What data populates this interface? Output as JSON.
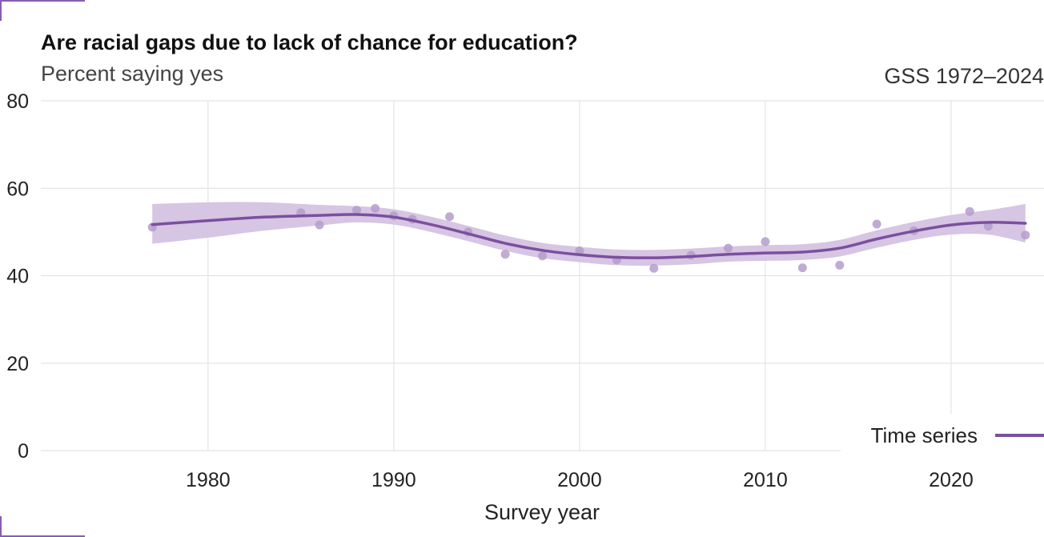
{
  "chart_data": {
    "type": "line",
    "title": "Are racial gaps due to lack of chance for education?",
    "subtitle": "Percent saying yes",
    "source_note": "GSS 1972–2024",
    "xlabel": "Survey year",
    "ylabel": "",
    "xlim": [
      1971,
      2025
    ],
    "ylim": [
      0,
      80
    ],
    "x_ticks": [
      1980,
      1990,
      2000,
      2010,
      2020
    ],
    "y_ticks": [
      0,
      20,
      40,
      60,
      80
    ],
    "grid": true,
    "legend": {
      "position": "bottom-right",
      "entries": [
        "Time series"
      ]
    },
    "colors": {
      "series": "#7b4f9e",
      "band": "#d4c2e2",
      "points": "#b49ccb",
      "grid": "#e4e4e4",
      "corner": "#8a5cb0"
    },
    "series": [
      {
        "name": "Time series",
        "points": [
          {
            "x": 1977,
            "y": 51.1
          },
          {
            "x": 1985,
            "y": 54.4
          },
          {
            "x": 1986,
            "y": 51.6
          },
          {
            "x": 1988,
            "y": 55.0
          },
          {
            "x": 1989,
            "y": 55.4
          },
          {
            "x": 1990,
            "y": 53.7
          },
          {
            "x": 1991,
            "y": 52.9
          },
          {
            "x": 1993,
            "y": 53.5
          },
          {
            "x": 1994,
            "y": 50.0
          },
          {
            "x": 1996,
            "y": 44.9
          },
          {
            "x": 1998,
            "y": 44.5
          },
          {
            "x": 2000,
            "y": 45.7
          },
          {
            "x": 2002,
            "y": 43.6
          },
          {
            "x": 2004,
            "y": 41.7
          },
          {
            "x": 2006,
            "y": 44.7
          },
          {
            "x": 2008,
            "y": 46.3
          },
          {
            "x": 2010,
            "y": 47.8
          },
          {
            "x": 2012,
            "y": 41.8
          },
          {
            "x": 2014,
            "y": 42.4
          },
          {
            "x": 2016,
            "y": 51.8
          },
          {
            "x": 2018,
            "y": 50.3
          },
          {
            "x": 2021,
            "y": 54.7
          },
          {
            "x": 2022,
            "y": 51.3
          },
          {
            "x": 2024,
            "y": 49.3
          }
        ],
        "trend": [
          {
            "x": 1977,
            "y": 51.7,
            "lo": 47.3,
            "hi": 56.4
          },
          {
            "x": 1980,
            "y": 52.6,
            "lo": 48.7,
            "hi": 56.8
          },
          {
            "x": 1983,
            "y": 53.4,
            "lo": 50.3,
            "hi": 56.8
          },
          {
            "x": 1986,
            "y": 53.8,
            "lo": 51.5,
            "hi": 56.2
          },
          {
            "x": 1988,
            "y": 54.0,
            "lo": 52.2,
            "hi": 55.9
          },
          {
            "x": 1990,
            "y": 53.4,
            "lo": 51.7,
            "hi": 55.2
          },
          {
            "x": 1992,
            "y": 51.7,
            "lo": 50.0,
            "hi": 53.5
          },
          {
            "x": 1994,
            "y": 49.6,
            "lo": 47.9,
            "hi": 51.4
          },
          {
            "x": 1996,
            "y": 47.4,
            "lo": 45.7,
            "hi": 49.2
          },
          {
            "x": 1998,
            "y": 45.8,
            "lo": 44.0,
            "hi": 47.5
          },
          {
            "x": 2000,
            "y": 44.8,
            "lo": 43.1,
            "hi": 46.6
          },
          {
            "x": 2002,
            "y": 44.2,
            "lo": 42.4,
            "hi": 46.0
          },
          {
            "x": 2004,
            "y": 44.1,
            "lo": 42.3,
            "hi": 45.9
          },
          {
            "x": 2006,
            "y": 44.4,
            "lo": 42.6,
            "hi": 46.2
          },
          {
            "x": 2008,
            "y": 44.9,
            "lo": 43.2,
            "hi": 46.7
          },
          {
            "x": 2010,
            "y": 45.2,
            "lo": 43.4,
            "hi": 47.0
          },
          {
            "x": 2012,
            "y": 45.4,
            "lo": 43.6,
            "hi": 47.2
          },
          {
            "x": 2014,
            "y": 46.3,
            "lo": 44.4,
            "hi": 48.2
          },
          {
            "x": 2016,
            "y": 48.4,
            "lo": 46.4,
            "hi": 50.4
          },
          {
            "x": 2018,
            "y": 50.2,
            "lo": 48.2,
            "hi": 52.3
          },
          {
            "x": 2020,
            "y": 51.6,
            "lo": 49.4,
            "hi": 53.9
          },
          {
            "x": 2022,
            "y": 52.2,
            "lo": 49.4,
            "hi": 55.0
          },
          {
            "x": 2024,
            "y": 52.0,
            "lo": 47.6,
            "hi": 56.4
          }
        ]
      }
    ]
  }
}
